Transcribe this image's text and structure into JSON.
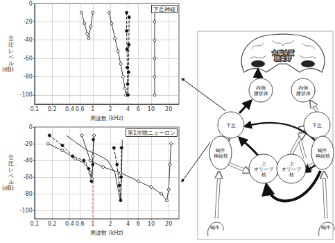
{
  "chart_data": [
    {
      "type": "line",
      "title": "下丘神経",
      "x_label": "周波数 (kHz)",
      "y_label": "音圧レベル\n(dB)",
      "log": "x",
      "grid": true,
      "xlim": [
        0.1,
        30
      ],
      "xticks": [
        0.1,
        0.2,
        0.4,
        0.6,
        1,
        2,
        4,
        6,
        10,
        20
      ],
      "ylim": [
        -110,
        0
      ],
      "yticks": [
        -100,
        -80,
        -60,
        -40,
        -20,
        0
      ],
      "series": [
        {
          "color": "#333333",
          "line_style": "solid",
          "marker": "open_circle",
          "x": [
            0.64,
            0.72,
            0.8,
            0.85,
            0.92,
            1.0
          ],
          "values": [
            -10,
            -22,
            -33,
            -38,
            -25,
            -10
          ]
        },
        {
          "color": "#333333",
          "line_style": "solid",
          "marker": "open_circle",
          "x": [
            1.9,
            2.1,
            2.4,
            2.7,
            3.0,
            3.3,
            3.55,
            3.7,
            3.8
          ],
          "values": [
            -10,
            -22,
            -38,
            -52,
            -66,
            -80,
            -93,
            -100,
            -95
          ]
        },
        {
          "color": "#111111",
          "line_style": "dashed",
          "marker": "filled_circle",
          "x": [
            3.8,
            3.8,
            3.85,
            3.9,
            3.95,
            4.0,
            4.1,
            4.15,
            4.2
          ],
          "values": [
            -10,
            -30,
            -50,
            -70,
            -88,
            -100,
            -75,
            -45,
            -15
          ]
        },
        {
          "color": "#333333",
          "line_style": "solid",
          "marker": "open_circle",
          "x": [
            11.5,
            11.5,
            11.5,
            11.5,
            11.5,
            11.5
          ],
          "values": [
            -5,
            -20,
            -40,
            -60,
            -80,
            -100
          ]
        }
      ]
    },
    {
      "type": "line",
      "title": "第1次聴ニューロン",
      "x_label": "周波数 (kHz)",
      "y_label": "音圧レベル\n(dB)",
      "log": "x",
      "grid": true,
      "xlim": [
        0.1,
        30
      ],
      "xticks": [
        0.1,
        0.2,
        0.4,
        0.6,
        1,
        2,
        4,
        6,
        10,
        20
      ],
      "ylim": [
        -110,
        0
      ],
      "yticks": [
        -100,
        -80,
        -60,
        -40,
        -20,
        0
      ],
      "series": [
        {
          "color": "#111111",
          "line_style": "dashed",
          "marker": "filled_circle",
          "x": [
            0.18,
            0.3,
            0.45,
            0.7,
            0.85,
            0.95,
            1.0,
            1.02
          ],
          "values": [
            -10,
            -22,
            -35,
            -40,
            -50,
            -65,
            -45,
            -15
          ]
        },
        {
          "color": "#333333",
          "line_style": "solid",
          "marker": "open_circle",
          "x": [
            0.17,
            0.3,
            0.5,
            0.75,
            0.9,
            0.97,
            1.0,
            1.05
          ],
          "values": [
            -20,
            -28,
            -38,
            -44,
            -55,
            -62,
            -35,
            -10
          ]
        },
        {
          "color": "#333333",
          "line_style": "solid",
          "marker": "none",
          "x": [
            0.35,
            0.55,
            0.8,
            1.2,
            1.8,
            2.4,
            2.8,
            3.0,
            3.1,
            3.2
          ],
          "values": [
            -10,
            -20,
            -28,
            -33,
            -40,
            -55,
            -80,
            -90,
            -60,
            -15
          ]
        },
        {
          "color": "#111111",
          "line_style": "dashed",
          "marker": "filled_circle",
          "x": [
            2.3,
            2.6,
            2.85,
            3.0,
            3.05,
            3.1
          ],
          "values": [
            -25,
            -45,
            -70,
            -88,
            -60,
            -25
          ]
        },
        {
          "color": "#333333",
          "line_style": "solid",
          "marker": "open_circle",
          "x": [
            0.65,
            0.9,
            1.5,
            3,
            6,
            10,
            15,
            18.5,
            20,
            21,
            22
          ],
          "values": [
            -10,
            -40,
            -48,
            -55,
            -65,
            -72,
            -80,
            -88,
            -75,
            -45,
            -20
          ]
        },
        {
          "color": "#e06060",
          "line_style": "dashed",
          "marker": "none",
          "x": [
            1,
            1
          ],
          "values": [
            -65,
            -110
          ]
        }
      ]
    }
  ],
  "diagram": {
    "nodes": [
      {
        "lines": [
          "大脳皮質",
          "聴覚野"
        ]
      },
      {
        "lines": [
          "内側",
          "膝状体"
        ]
      },
      {
        "lines": [
          "内側",
          "膝状体"
        ]
      },
      {
        "lines": [
          "下丘"
        ]
      },
      {
        "lines": [
          "下丘"
        ]
      },
      {
        "lines": [
          "上",
          "オリーブ",
          "核"
        ]
      },
      {
        "lines": [
          "上",
          "オリーブ",
          "核"
        ]
      },
      {
        "lines": [
          "蝸牛",
          "神経核"
        ]
      },
      {
        "lines": [
          "蝸牛",
          "神経核"
        ]
      },
      {
        "lines": [
          "蝸牛"
        ]
      },
      {
        "lines": [
          "蝸牛"
        ]
      }
    ]
  }
}
